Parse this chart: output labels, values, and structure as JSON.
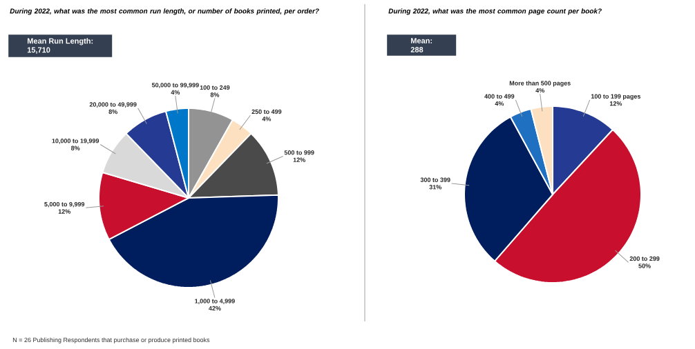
{
  "chart_data": [
    {
      "type": "pie",
      "title": "During 2022, what was the most common run length, or number of books printed, per order?",
      "categories": [
        "100 to 249",
        "250 to 499",
        "500 to 999",
        "1,000 to 4,999",
        "5,000 to 9,999",
        "10,000 to 19,999",
        "20,000 to 49,999",
        "50,000 to 99,999"
      ],
      "values": [
        8,
        4,
        12,
        42,
        12,
        8,
        8,
        4
      ],
      "value_labels": [
        "8%",
        "4%",
        "12%",
        "42%",
        "12%",
        "8%",
        "8%",
        "4%"
      ],
      "colors": [
        "#939393",
        "#fde0c0",
        "#4a4a4a",
        "#001e5e",
        "#c8102e",
        "#d9d9d9",
        "#253a93",
        "#0077c8"
      ],
      "annotations": [
        "Mean Run Length:",
        "15,710",
        "N = 26 Publishing Respondents that purchase or produce printed books"
      ]
    },
    {
      "type": "pie",
      "title": "During 2022, what was the most common page count per book?",
      "categories": [
        "100 to 199 pages",
        "200 to 299",
        "300 to 399",
        "400 to 499",
        "More than 500 pages"
      ],
      "values": [
        12,
        50,
        31,
        4,
        4
      ],
      "value_labels": [
        "12%",
        "50%",
        "31%",
        "4%",
        "4%"
      ],
      "colors": [
        "#253a93",
        "#c8102e",
        "#001e5e",
        "#1f70c1",
        "#fde0c0"
      ],
      "annotations": [
        "Mean:",
        "288"
      ]
    }
  ]
}
